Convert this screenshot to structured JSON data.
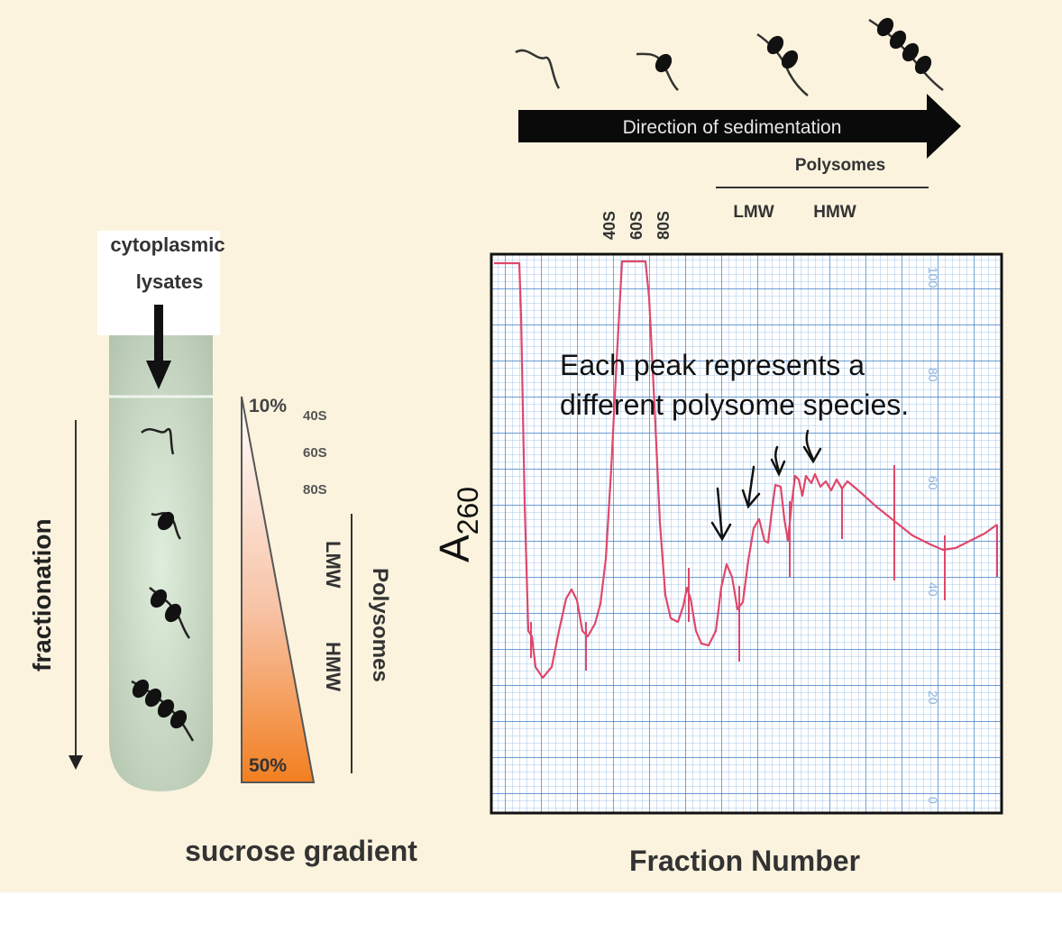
{
  "colors": {
    "background": "#fbf3de",
    "tube": "#b8c6b2",
    "gradient_top": "#ffffff",
    "gradient_bottom": "#f27f20",
    "grid_blue": "#4f8fd1",
    "trace_red": "#e0476a"
  },
  "tube": {
    "top_label_line1": "cytoplasmic",
    "top_label_line2": "lysates",
    "side_label": "fractionation",
    "bottom_label": "sucrose gradient"
  },
  "gradient": {
    "top_percent": "10%",
    "bottom_percent": "50%",
    "markers": [
      "40S",
      "60S",
      "80S"
    ],
    "lmw": "LMW",
    "hmw": "HMW",
    "polysomes": "Polysomes"
  },
  "sedimentation": {
    "arrow_label": "Direction of sedimentation",
    "polysomes": "Polysomes",
    "lmw": "LMW",
    "hmw": "HMW",
    "peaks": [
      "40S",
      "60S",
      "80S"
    ]
  },
  "chart": {
    "ylabel_main": "A",
    "ylabel_sub": "260",
    "xlabel": "Fraction Number",
    "annotation_line1": "Each peak represents a",
    "annotation_line2": "different polysome species.",
    "axis_ticks": [
      "100",
      "80",
      "60",
      "40",
      "20",
      "0"
    ]
  },
  "icons": {
    "ribosome": "ribosome-icon",
    "mrna": "mrna-strand-icon",
    "arrow": "arrow-icon"
  }
}
